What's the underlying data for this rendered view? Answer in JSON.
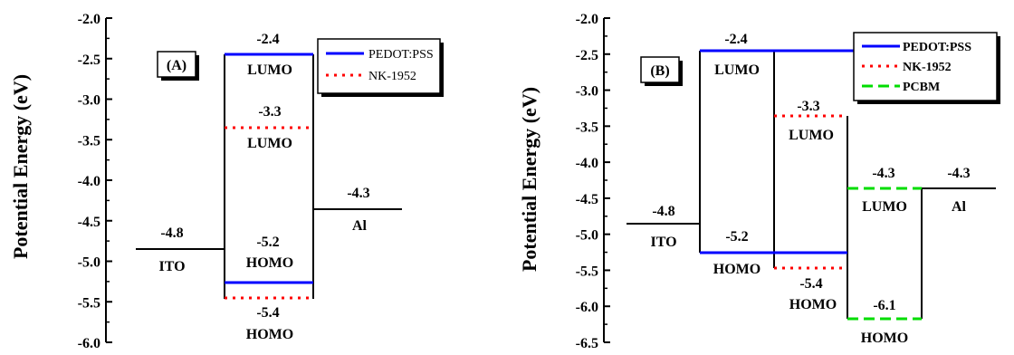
{
  "colors": {
    "pedot": "#0000ff",
    "nk": "#ff0000",
    "pcbm": "#00dd00",
    "line": "#000000"
  },
  "chart_data": [
    {
      "type": "energy-level-diagram",
      "panel_label": "(A)",
      "ylabel": "Potential Energy (eV)",
      "ylim": [
        -6.0,
        -2.0
      ],
      "yticks": [
        "-2.0",
        "-2.5",
        "-3.0",
        "-3.5",
        "-4.0",
        "-4.5",
        "-5.0",
        "-5.5",
        "-6.0"
      ],
      "legend": [
        "PEDOT:PSS",
        "NK-1952"
      ],
      "levels": [
        {
          "value": -4.8,
          "value_label": "-4.8",
          "name": "ITO",
          "series": "black"
        },
        {
          "value": -2.4,
          "value_label": "-2.4",
          "name": "LUMO",
          "series": "pedot"
        },
        {
          "value": -3.3,
          "value_label": "-3.3",
          "name": "LUMO",
          "series": "nk"
        },
        {
          "value": -5.2,
          "value_label": "-5.2",
          "name": "HOMO",
          "series": "pedot"
        },
        {
          "value": -5.4,
          "value_label": "-5.4",
          "name": "HOMO",
          "series": "nk"
        },
        {
          "value": -4.3,
          "value_label": "-4.3",
          "name": "Al",
          "series": "black"
        }
      ]
    },
    {
      "type": "energy-level-diagram",
      "panel_label": "(B)",
      "ylabel": "Potential Energy (eV)",
      "ylim": [
        -6.5,
        -2.0
      ],
      "yticks": [
        "-2.0",
        "-2.5",
        "-3.0",
        "-3.5",
        "-4.0",
        "-4.5",
        "-5.0",
        "-5.5",
        "-6.0",
        "-6.5"
      ],
      "legend": [
        "PEDOT:PSS",
        "NK-1952",
        "PCBM"
      ],
      "levels": [
        {
          "value": -4.8,
          "value_label": "-4.8",
          "name": "ITO",
          "series": "black"
        },
        {
          "value": -2.4,
          "value_label": "-2.4",
          "name": "LUMO",
          "series": "pedot"
        },
        {
          "value": -5.2,
          "value_label": "-5.2",
          "name": "HOMO",
          "series": "pedot"
        },
        {
          "value": -3.3,
          "value_label": "-3.3",
          "name": "LUMO",
          "series": "nk"
        },
        {
          "value": -5.4,
          "value_label": "-5.4",
          "name": "HOMO",
          "series": "nk"
        },
        {
          "value": -4.3,
          "value_label": "-4.3",
          "name": "LUMO",
          "series": "pcbm"
        },
        {
          "value": -6.1,
          "value_label": "-6.1",
          "name": "HOMO",
          "series": "pcbm"
        },
        {
          "value": -4.3,
          "value_label": "-4.3",
          "name": "Al",
          "series": "black"
        }
      ]
    }
  ]
}
